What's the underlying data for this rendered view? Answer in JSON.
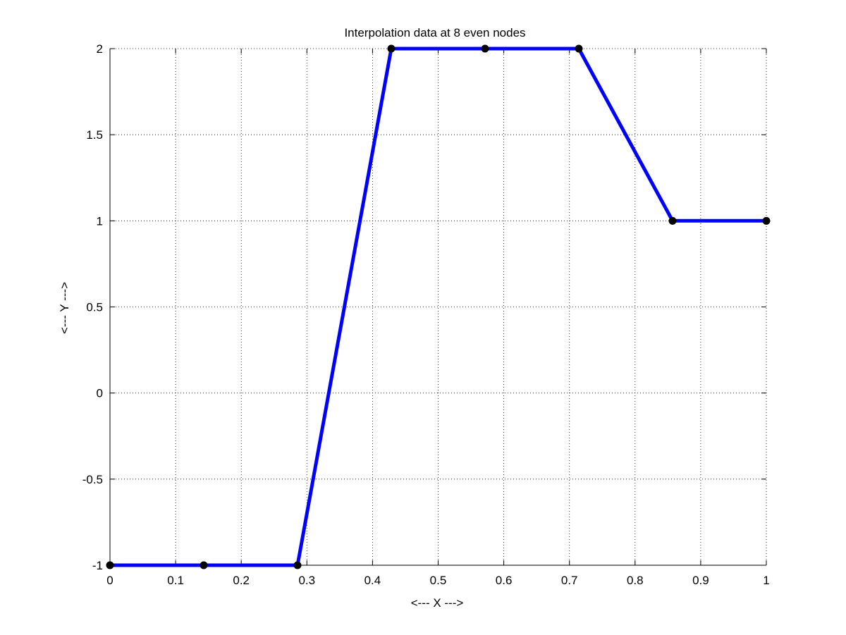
{
  "chart_data": {
    "type": "line",
    "title": "Interpolation data at 8 even nodes",
    "xlabel": "<--- X --->",
    "ylabel": "<--- Y --->",
    "xlim": [
      0,
      1
    ],
    "ylim": [
      -1,
      2
    ],
    "grid": true,
    "x_ticks": [
      0,
      0.1,
      0.2,
      0.3,
      0.4,
      0.5,
      0.6,
      0.7,
      0.8,
      0.9,
      1
    ],
    "x_tick_labels": [
      "0",
      "0.1",
      "0.2",
      "0.3",
      "0.4",
      "0.5",
      "0.6",
      "0.7",
      "0.8",
      "0.9",
      "1"
    ],
    "y_ticks": [
      -1,
      -0.5,
      0,
      0.5,
      1,
      1.5,
      2
    ],
    "y_tick_labels": [
      "-1",
      "-0.5",
      "0",
      "0.5",
      "1",
      "1.5",
      "2"
    ],
    "series": [
      {
        "x": [
          0,
          0.142857,
          0.285714,
          0.428571,
          0.571429,
          0.714286,
          0.857143,
          1
        ],
        "y": [
          -1,
          -1,
          -1,
          2,
          2,
          2,
          1,
          1
        ],
        "line_color": "#0000ff",
        "marker_color": "#000000"
      }
    ]
  }
}
